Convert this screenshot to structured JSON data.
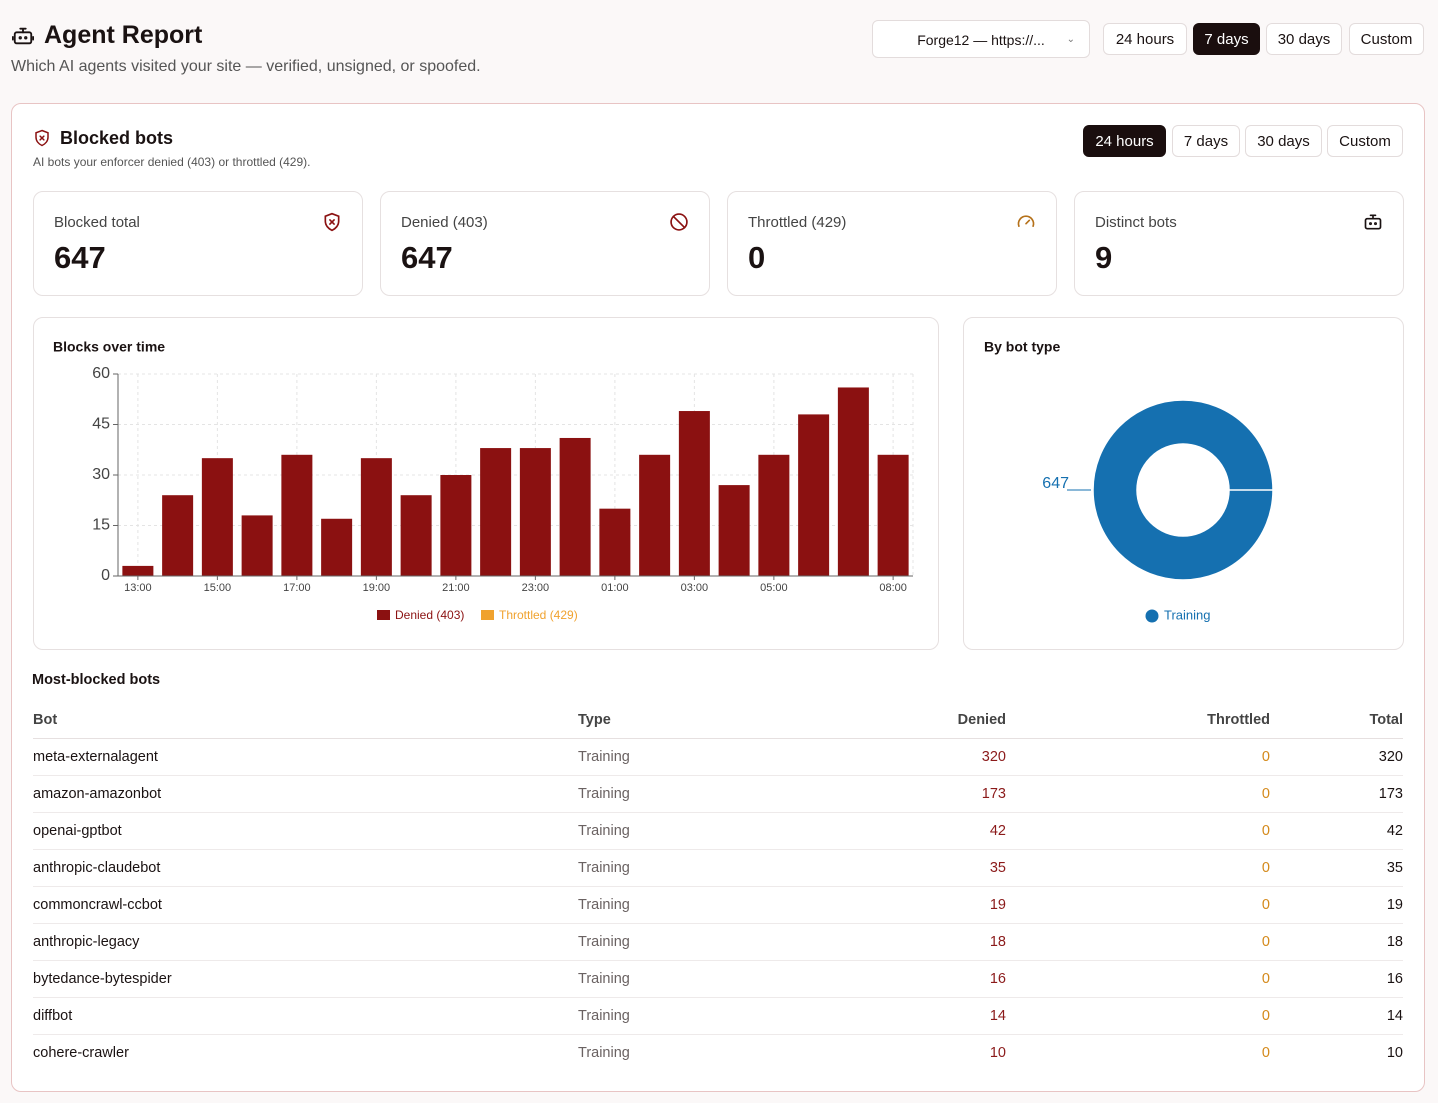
{
  "header": {
    "title": "Agent Report",
    "subtitle": "Which AI agents visited your site — verified, unsigned, or spoofed.",
    "site_select": "Forge12 — https://...",
    "ranges": [
      "24 hours",
      "7 days",
      "30 days",
      "Custom"
    ],
    "active_range": "7 days"
  },
  "panel": {
    "title": "Blocked bots",
    "subtitle": "AI bots your enforcer denied (403) or throttled (429).",
    "ranges": [
      "24 hours",
      "7 days",
      "30 days",
      "Custom"
    ],
    "active_range": "24 hours"
  },
  "stats": [
    {
      "label": "Blocked total",
      "value": 647
    },
    {
      "label": "Denied (403)",
      "value": 647
    },
    {
      "label": "Throttled (429)",
      "value": 0
    },
    {
      "label": "Distinct bots",
      "value": 9
    }
  ],
  "chart_data": [
    {
      "type": "bar",
      "title": "Blocks over time",
      "categories": [
        "13:00",
        null,
        "15:00",
        null,
        "17:00",
        null,
        "19:00",
        null,
        "21:00",
        null,
        "23:00",
        null,
        "01:00",
        null,
        "03:00",
        null,
        "05:00",
        null,
        null,
        "08:00"
      ],
      "series": [
        {
          "name": "Denied (403)",
          "color": "#8b1111",
          "values": [
            3,
            24,
            35,
            18,
            36,
            17,
            35,
            24,
            30,
            38,
            38,
            41,
            20,
            36,
            49,
            27,
            36,
            48,
            56,
            36
          ]
        },
        {
          "name": "Throttled (429)",
          "color": "#f0a22e",
          "values": [
            0,
            0,
            0,
            0,
            0,
            0,
            0,
            0,
            0,
            0,
            0,
            0,
            0,
            0,
            0,
            0,
            0,
            0,
            0,
            0
          ]
        }
      ],
      "stacked": true,
      "ylim": [
        0,
        60
      ],
      "yticks": [
        0,
        15,
        30,
        45,
        60
      ],
      "grid": true
    },
    {
      "type": "pie",
      "title": "By bot type",
      "categories": [
        "Training"
      ],
      "values": [
        647
      ],
      "colors": [
        "#1570b0"
      ],
      "donut": true
    }
  ],
  "table": {
    "title": "Most-blocked bots",
    "columns": [
      "Bot",
      "Type",
      "Denied",
      "Throttled",
      "Total"
    ],
    "rows": [
      [
        "meta-externalagent",
        "Training",
        320,
        0,
        320
      ],
      [
        "amazon-amazonbot",
        "Training",
        173,
        0,
        173
      ],
      [
        "openai-gptbot",
        "Training",
        42,
        0,
        42
      ],
      [
        "anthropic-claudebot",
        "Training",
        35,
        0,
        35
      ],
      [
        "commoncrawl-ccbot",
        "Training",
        19,
        0,
        19
      ],
      [
        "anthropic-legacy",
        "Training",
        18,
        0,
        18
      ],
      [
        "bytedance-bytespider",
        "Training",
        16,
        0,
        16
      ],
      [
        "diffbot",
        "Training",
        14,
        0,
        14
      ],
      [
        "cohere-crawler",
        "Training",
        10,
        0,
        10
      ]
    ]
  }
}
